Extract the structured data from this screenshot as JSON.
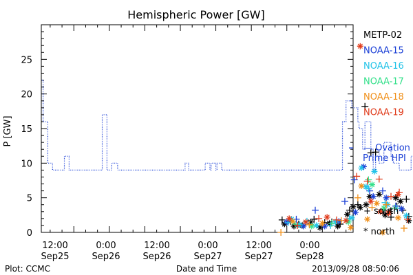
{
  "chart_data": {
    "type": "scatter",
    "title": "Hemispheric Power [GW]",
    "ylabel": "P [GW]",
    "xlabel": "Date and Time",
    "footer_left": "Plot: CCMC",
    "footer_right": "2013/09/28 08:50:06",
    "x_unit": "hours since 2013-09-25 00:00 UT",
    "xlim": [
      6.5,
      59.2
    ],
    "ylim": [
      0,
      30
    ],
    "y_ticks": [
      0,
      5,
      10,
      15,
      20,
      25
    ],
    "x_ticks": [
      {
        "x": 12,
        "line1": "12:00",
        "line2": "Sep25"
      },
      {
        "x": 24,
        "line1": "0:00",
        "line2": "Sep26"
      },
      {
        "x": 36,
        "line1": "12:00",
        "line2": "Sep26"
      },
      {
        "x": 48,
        "line1": "0:00",
        "line2": "Sep27"
      },
      {
        "x": 60,
        "line1": "12:00",
        "line2": "Sep27"
      },
      {
        "x": 72,
        "line1": "0:00",
        "line2": "Sep28"
      }
    ],
    "satellite_legend": [
      {
        "name": "METP-02",
        "color": "#000000"
      },
      {
        "name": "NOAA-15",
        "color": "#1a3fd6"
      },
      {
        "name": "NOAA-16",
        "color": "#22c3e8"
      },
      {
        "name": "NOAA-17",
        "color": "#33e08a"
      },
      {
        "name": "NOAA-18",
        "color": "#f0901a"
      },
      {
        "name": "NOAA-19",
        "color": "#e03a1a"
      }
    ],
    "ovation": {
      "label_line1": "— Ovation",
      "label_line2": "Prime HPI",
      "color": "#1a3fd6",
      "current_value": 12.2,
      "step_points": [
        [
          6.6,
          22
        ],
        [
          6.8,
          16
        ],
        [
          7.6,
          10
        ],
        [
          8.4,
          9
        ],
        [
          10.2,
          9
        ],
        [
          10.4,
          11
        ],
        [
          11.2,
          9
        ],
        [
          16.6,
          9
        ],
        [
          16.8,
          17
        ],
        [
          17.6,
          9
        ],
        [
          18.4,
          10
        ],
        [
          19.4,
          9
        ],
        [
          30.6,
          9
        ],
        [
          30.8,
          10
        ],
        [
          31.4,
          9
        ],
        [
          34,
          9
        ],
        [
          34.2,
          10
        ],
        [
          35,
          9
        ],
        [
          35.2,
          10
        ],
        [
          36,
          9
        ],
        [
          36.2,
          10
        ],
        [
          37,
          9
        ],
        [
          37.4,
          9
        ],
        [
          57,
          9
        ],
        [
          57.4,
          16
        ],
        [
          58,
          19
        ],
        [
          59,
          18
        ],
        [
          60,
          16
        ],
        [
          60.2,
          15
        ],
        [
          60.8,
          12
        ],
        [
          61.2,
          16
        ],
        [
          62.2,
          12
        ],
        [
          62.6,
          9
        ],
        [
          63,
          12
        ],
        [
          63.6,
          10
        ],
        [
          64.4,
          13
        ],
        [
          65.6,
          11
        ],
        [
          66,
          10
        ],
        [
          67,
          9
        ],
        [
          68.6,
          9
        ],
        [
          69,
          11
        ],
        [
          69.4,
          12.2
        ]
      ]
    },
    "symbol_legend": [
      {
        "symbol": "+",
        "label": "south"
      },
      {
        "symbol": "*",
        "label": "north"
      }
    ],
    "series": [
      {
        "name": "METP-02",
        "color": "#000000",
        "south": [
          [
            47.2,
            1.8
          ],
          [
            48.6,
            1.6
          ],
          [
            50,
            1.2
          ],
          [
            52.6,
            1.9
          ],
          [
            54.4,
            1.4
          ],
          [
            55.6,
            1.5
          ],
          [
            57,
            1.2
          ],
          [
            58.6,
            3.2
          ],
          [
            60,
            4
          ],
          [
            61.2,
            18.2
          ],
          [
            62.2,
            11.5
          ],
          [
            63,
            11.6
          ],
          [
            64.4,
            3.2
          ],
          [
            65.6,
            2.2
          ],
          [
            66.6,
            3.8
          ],
          [
            67.6,
            3.2
          ],
          [
            68.2,
            4.8
          ],
          [
            68.6,
            2.3
          ]
        ],
        "north": [
          [
            47.6,
            1.2
          ],
          [
            49.2,
            0.9
          ],
          [
            50.6,
            1
          ],
          [
            52,
            1.5
          ],
          [
            53.6,
            0.7
          ],
          [
            55.2,
            1.3
          ],
          [
            56.6,
            0.9
          ],
          [
            58.2,
            2.6
          ],
          [
            59.2,
            3.7
          ],
          [
            60.4,
            3.6
          ],
          [
            61.4,
            4
          ],
          [
            62,
            5.2
          ],
          [
            63.6,
            5.5
          ],
          [
            64.6,
            2.5
          ],
          [
            65.4,
            3
          ],
          [
            66.4,
            5
          ],
          [
            67.2,
            4.5
          ],
          [
            68.6,
            1.7
          ]
        ]
      },
      {
        "name": "NOAA-15",
        "color": "#1a3fd6",
        "south": [
          [
            49.6,
            1.9
          ],
          [
            52.8,
            3.2
          ],
          [
            57.8,
            4.5
          ],
          [
            59.4,
            7.6
          ],
          [
            62,
            6
          ],
          [
            64.2,
            6
          ],
          [
            66.4,
            3.8
          ]
        ],
        "north": [
          [
            48,
            1.5
          ],
          [
            50.8,
            0.9
          ],
          [
            54.4,
            0.9
          ],
          [
            56.8,
            1.6
          ],
          [
            59.6,
            2.9
          ],
          [
            61,
            9.5
          ],
          [
            62.6,
            5.2
          ],
          [
            64.8,
            5
          ],
          [
            67.4,
            3.4
          ]
        ]
      },
      {
        "name": "NOAA-16",
        "color": "#22c3e8",
        "south": [
          [
            48.2,
            1.4
          ],
          [
            51.4,
            1.6
          ],
          [
            55.4,
            1
          ],
          [
            58.6,
            2
          ],
          [
            61.8,
            6.3
          ],
          [
            64.6,
            4.3
          ],
          [
            66.6,
            3.5
          ]
        ],
        "north": [
          [
            48.8,
            1.9
          ],
          [
            50.2,
            1.1
          ],
          [
            53,
            1
          ],
          [
            56.2,
            1.5
          ],
          [
            59,
            2.1
          ],
          [
            60.6,
            9.3
          ],
          [
            61.4,
            6.6
          ],
          [
            62.8,
            8.8
          ],
          [
            65,
            4
          ],
          [
            68.2,
            2.4
          ]
        ]
      },
      {
        "name": "NOAA-17",
        "color": "#33e08a",
        "south": [
          [
            49.4,
            1.2
          ],
          [
            55.6,
            1.3
          ],
          [
            61.8,
            7.6
          ],
          [
            66.2,
            3.5
          ]
        ],
        "north": [
          [
            52.2,
            0.9
          ],
          [
            58.4,
            1.5
          ],
          [
            62.4,
            6.9
          ],
          [
            64.4,
            3.5
          ]
        ]
      },
      {
        "name": "NOAA-18",
        "color": "#f0901a",
        "south": [
          [
            47,
            0
          ],
          [
            51.8,
            1.1
          ],
          [
            57.2,
            1.7
          ],
          [
            60,
            5
          ],
          [
            62.4,
            3.6
          ],
          [
            64.8,
            4
          ],
          [
            67.8,
            0.6
          ]
        ],
        "north": [
          [
            49,
            1.6
          ],
          [
            54,
            1.3
          ],
          [
            58.8,
            0.7
          ],
          [
            60.6,
            6.7
          ],
          [
            61.6,
            1.9
          ],
          [
            63.2,
            4.2
          ],
          [
            64.2,
            0
          ],
          [
            66.8,
            2.1
          ]
        ]
      },
      {
        "name": "NOAA-19",
        "color": "#e03a1a",
        "south": [
          [
            49.8,
            1
          ],
          [
            53.4,
            2
          ],
          [
            56.4,
            1.8
          ],
          [
            59.8,
            8.1
          ],
          [
            61.6,
            7.4
          ],
          [
            63.6,
            7.7
          ],
          [
            65.6,
            5.2
          ],
          [
            67,
            5.8
          ],
          [
            68.4,
            1.9
          ]
        ],
        "north": [
          [
            48.4,
            2
          ],
          [
            51.2,
            1.5
          ],
          [
            54.8,
            2.2
          ],
          [
            58,
            1.7
          ],
          [
            60.4,
            26.9
          ],
          [
            62.2,
            4.5
          ],
          [
            63.8,
            3
          ],
          [
            65.2,
            2.8
          ],
          [
            66.8,
            5.5
          ]
        ]
      }
    ]
  }
}
